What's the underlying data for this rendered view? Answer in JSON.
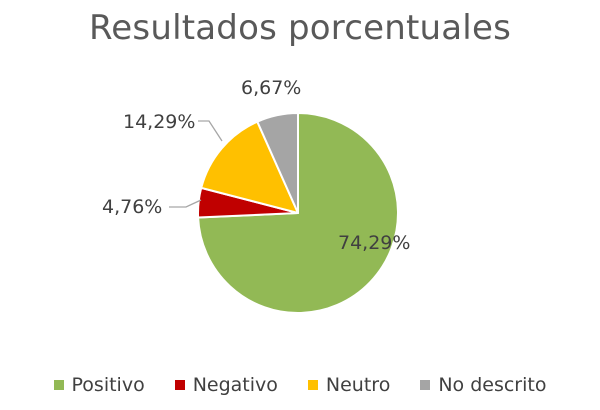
{
  "chart_data": {
    "type": "pie",
    "title": "Resultados porcentuales",
    "start_angle_deg": 90,
    "direction": "clockwise",
    "legend_position": "bottom",
    "slices": [
      {
        "label": "Positivo",
        "value": 74.29,
        "value_label": "74,29%",
        "color": "#92b955"
      },
      {
        "label": "Negativo",
        "value": 4.76,
        "value_label": "4,76%",
        "color": "#c00000"
      },
      {
        "label": "Neutro",
        "value": 14.29,
        "value_label": "14,29%",
        "color": "#ffc000"
      },
      {
        "label": "No descrito",
        "value": 6.67,
        "value_label": "6,67%",
        "color": "#a5a5a5"
      }
    ]
  }
}
